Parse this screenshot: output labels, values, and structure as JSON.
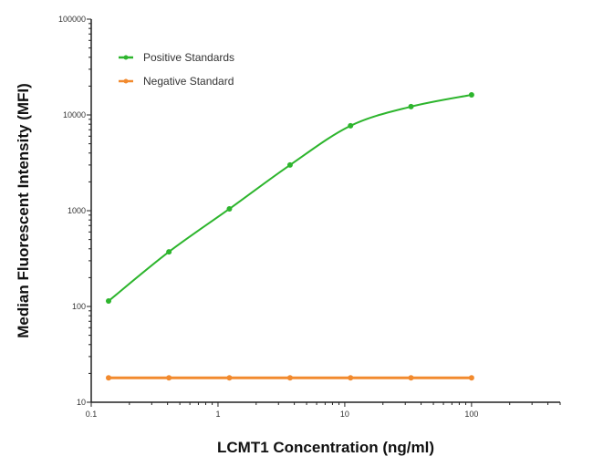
{
  "chart_data": {
    "type": "line",
    "xlabel": "LCMT1 Concentration (ng/ml)",
    "ylabel": "Median  Fluorescent Intensity  (MFI)",
    "xscale": "log",
    "yscale": "log",
    "xlim": [
      0.1,
      500
    ],
    "ylim": [
      10,
      100000
    ],
    "xticks": [
      0.1,
      1,
      10,
      100
    ],
    "xtick_labels": [
      "0.1",
      "1",
      "10",
      "100"
    ],
    "yticks": [
      10,
      100,
      1000,
      10000,
      100000
    ],
    "ytick_labels": [
      "10",
      "100",
      "1000",
      "10000",
      "100000"
    ],
    "grid": false,
    "legend_position": "top-left",
    "series": [
      {
        "name": "Positive Standards",
        "color": "#2db52d",
        "x": [
          0.137,
          0.41,
          1.23,
          3.7,
          11.1,
          33.3,
          100
        ],
        "y": [
          114,
          372,
          1045,
          3000,
          7700,
          12200,
          16200
        ]
      },
      {
        "name": "Negative Standard",
        "color": "#f28a2e",
        "x": [
          0.137,
          0.41,
          1.23,
          3.7,
          11.1,
          33.3,
          100
        ],
        "y": [
          18,
          18,
          18,
          18,
          18,
          18,
          18
        ]
      }
    ]
  }
}
